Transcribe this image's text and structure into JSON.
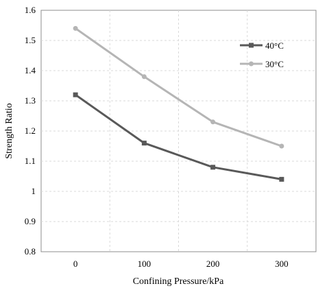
{
  "chart_data": {
    "type": "line",
    "x": [
      0,
      100,
      200,
      300
    ],
    "xlabel": "Confining Pressure/kPa",
    "ylabel": "Strength Ratio",
    "xlim": [
      -50,
      350
    ],
    "ylim": [
      0.8,
      1.6
    ],
    "x_ticks": [
      "0",
      "100",
      "200",
      "300"
    ],
    "y_ticks": [
      "0.8",
      "0.9",
      "1",
      "1.1",
      "1.2",
      "1.3",
      "1.4",
      "1.5",
      "1.6"
    ],
    "grid": true,
    "legend_position": "top-right",
    "series": [
      {
        "name": "40°C",
        "values": [
          1.32,
          1.16,
          1.08,
          1.04
        ],
        "color": "#595959",
        "marker": "square"
      },
      {
        "name": "30°C",
        "values": [
          1.54,
          1.38,
          1.23,
          1.15
        ],
        "color": "#b5b5b5",
        "marker": "circle"
      }
    ]
  }
}
